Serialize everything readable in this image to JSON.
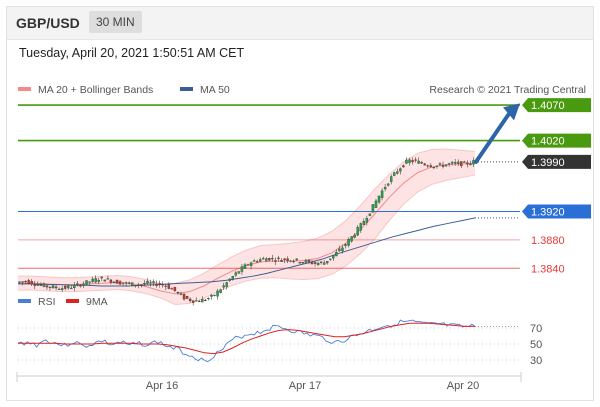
{
  "header": {
    "symbol": "GBP/USD",
    "timeframe": "30 MIN"
  },
  "timestamp": "Tuesday, April 20, 2021 1:50:51 AM CET",
  "credit": "Research © 2021 Trading Central",
  "colors": {
    "resistance": "#4a9a10",
    "pivot": "#2b6fd6",
    "support": "#e63a3a",
    "bollinger": "#f48a8a",
    "ma50": "#3a5f95",
    "rsi": "#4a7fd8",
    "rsi_ma": "#dd2222",
    "current": "#333333",
    "arrow": "#2e64a8"
  },
  "chart_data": [
    {
      "type": "candlestick",
      "legend": [
        {
          "name": "MA 20 + Bollinger Bands",
          "color": "#f48a8a"
        },
        {
          "name": "MA 50",
          "color": "#3a5f95"
        }
      ],
      "x_ticks": [
        "Apr 16",
        "Apr 17",
        "Apr 20"
      ],
      "y_range": [
        1.3815,
        1.408
      ],
      "levels": [
        {
          "label": "1.4070",
          "value": 1.407,
          "kind": "resistance"
        },
        {
          "label": "1.4020",
          "value": 1.402,
          "kind": "resistance"
        },
        {
          "label": "1.3990",
          "value": 1.399,
          "kind": "current"
        },
        {
          "label": "1.3920",
          "value": 1.392,
          "kind": "pivot"
        },
        {
          "label": "1.3880",
          "value": 1.388,
          "kind": "support"
        },
        {
          "label": "1.3840",
          "value": 1.384,
          "kind": "support"
        }
      ],
      "price_path": [
        1.382,
        1.3822,
        1.3818,
        1.3815,
        1.3813,
        1.3812,
        1.3814,
        1.3818,
        1.3822,
        1.3826,
        1.3823,
        1.382,
        1.3818,
        1.3817,
        1.3819,
        1.3818,
        1.3816,
        1.3808,
        1.3798,
        1.3794,
        1.3795,
        1.38,
        1.3812,
        1.3826,
        1.3838,
        1.3848,
        1.3852,
        1.3854,
        1.3852,
        1.3853,
        1.3851,
        1.3849,
        1.3847,
        1.3848,
        1.3858,
        1.387,
        1.3885,
        1.3902,
        1.3922,
        1.3945,
        1.3965,
        1.398,
        1.3992,
        1.399,
        1.3986,
        1.3984,
        1.3986,
        1.3988,
        1.3987,
        1.399
      ],
      "ma50_path": [
        1.3818,
        1.3818,
        1.3817,
        1.3817,
        1.3816,
        1.3816,
        1.3815,
        1.3815,
        1.3815,
        1.3816,
        1.3817,
        1.3818,
        1.3819,
        1.382,
        1.3821,
        1.3823,
        1.3826,
        1.3829,
        1.3833,
        1.3838,
        1.3843,
        1.3848,
        1.3853,
        1.386,
        1.3866,
        1.3872,
        1.3878,
        1.3884,
        1.3889,
        1.3894,
        1.3899,
        1.3903,
        1.3907,
        1.3911
      ],
      "bb_mid_path": [
        1.3819,
        1.3819,
        1.3818,
        1.3817,
        1.3817,
        1.3818,
        1.3819,
        1.382,
        1.3818,
        1.3814,
        1.3808,
        1.3804,
        1.3807,
        1.3815,
        1.3826,
        1.3836,
        1.3844,
        1.3849,
        1.385,
        1.385,
        1.3851,
        1.3854,
        1.3862,
        1.3876,
        1.3895,
        1.3917,
        1.394,
        1.396,
        1.3975,
        1.3983,
        1.3986,
        1.3987,
        1.3988
      ]
    },
    {
      "type": "line",
      "legend": [
        {
          "name": "RSI",
          "color": "#4a7fd8"
        },
        {
          "name": "9MA",
          "color": "#dd2222"
        }
      ],
      "y_ticks": [
        70,
        50,
        30
      ],
      "y_range": [
        15,
        85
      ],
      "rsi": [
        50,
        52,
        49,
        55,
        51,
        48,
        53,
        47,
        50,
        54,
        49,
        52,
        48,
        51,
        49,
        53,
        47,
        44,
        38,
        34,
        28,
        36,
        44,
        55,
        60,
        63,
        65,
        70,
        72,
        68,
        65,
        62,
        60,
        56,
        52,
        55,
        60,
        64,
        68,
        72,
        74,
        77,
        78,
        76,
        74,
        75,
        73,
        72,
        71,
        72
      ],
      "rsi_ma": [
        51,
        51,
        51,
        51,
        51,
        50,
        50,
        50,
        50,
        51,
        51,
        51,
        51,
        50,
        50,
        50,
        49,
        47,
        45,
        42,
        39,
        38,
        40,
        45,
        51,
        56,
        60,
        64,
        67,
        68,
        67,
        65,
        63,
        61,
        59,
        59,
        61,
        63,
        66,
        69,
        72,
        74,
        76,
        76,
        76,
        75,
        74,
        73,
        72,
        72
      ]
    }
  ]
}
